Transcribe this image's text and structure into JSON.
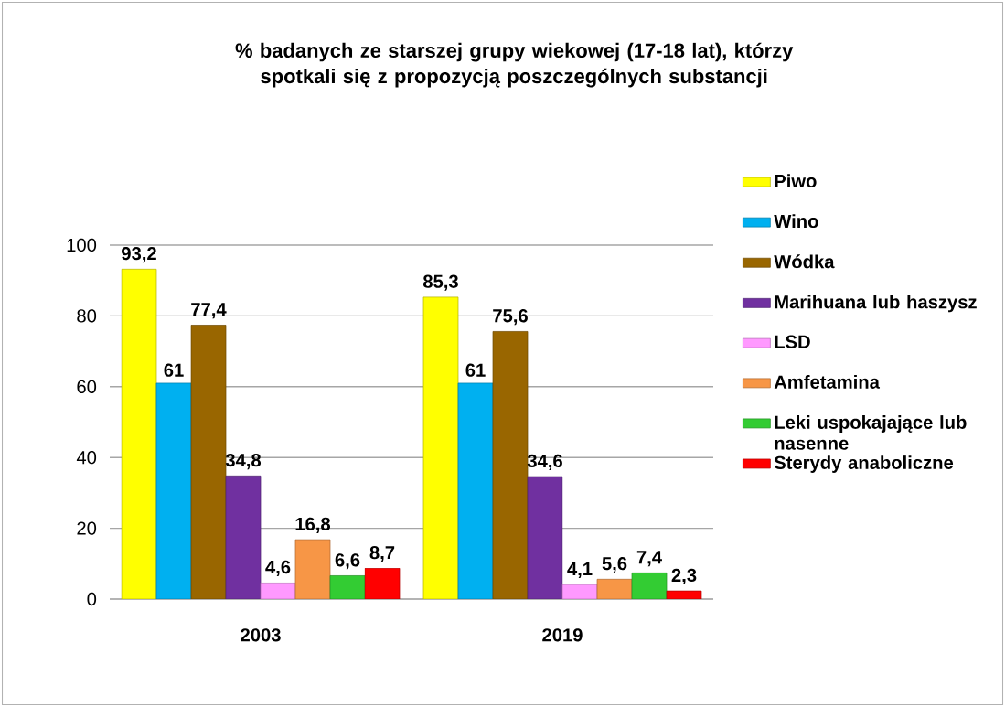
{
  "chart_data": {
    "type": "bar",
    "title": "% badanych ze starszej grupy wiekowej (17-18 lat), którzy spotkali się z propozycją poszczególnych substancji",
    "categories": [
      "2003",
      "2019"
    ],
    "series": [
      {
        "name": "Piwo",
        "color": "#ffff00",
        "values": [
          93.2,
          85.3
        ],
        "value_labels": [
          "93,2",
          "85,3"
        ]
      },
      {
        "name": "Wino",
        "color": "#00b0f0",
        "values": [
          61,
          61
        ],
        "value_labels": [
          "61",
          "61"
        ]
      },
      {
        "name": "Wódka",
        "color": "#996600",
        "values": [
          77.4,
          75.6
        ],
        "value_labels": [
          "77,4",
          "75,6"
        ]
      },
      {
        "name": "Marihuana lub haszysz",
        "color": "#7030a0",
        "values": [
          34.8,
          34.6
        ],
        "value_labels": [
          "34,8",
          "34,6"
        ]
      },
      {
        "name": "LSD",
        "color": "#ff99ff",
        "values": [
          4.6,
          4.1
        ],
        "value_labels": [
          "4,6",
          "4,1"
        ]
      },
      {
        "name": "Amfetamina",
        "color": "#f79646",
        "values": [
          16.8,
          5.6
        ],
        "value_labels": [
          "16,8",
          "5,6"
        ]
      },
      {
        "name": "Leki uspokajające lub nasenne",
        "color": "#33cc33",
        "values": [
          6.6,
          7.4
        ],
        "value_labels": [
          "6,6",
          "7,4"
        ]
      },
      {
        "name": "Sterydy anaboliczne",
        "color": "#ff0000",
        "values": [
          8.7,
          2.3
        ],
        "value_labels": [
          "8,7",
          "2,3"
        ]
      }
    ],
    "ylim": [
      0,
      100
    ],
    "yticks": [
      0,
      20,
      40,
      60,
      80,
      100
    ],
    "grid": "y",
    "legend": "right"
  }
}
